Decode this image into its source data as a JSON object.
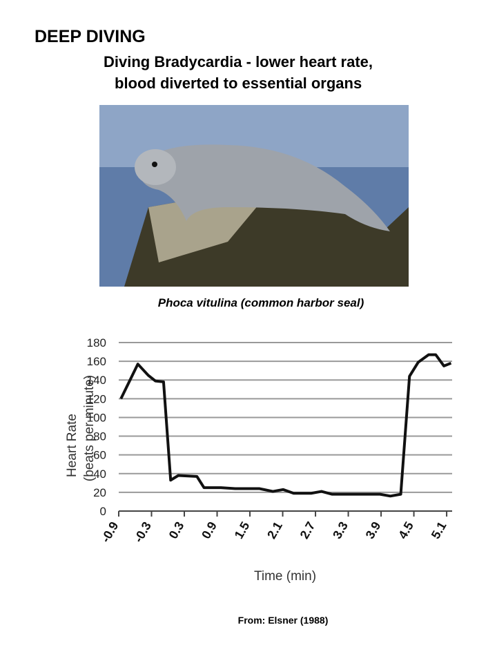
{
  "header": {
    "title": "DEEP DIVING",
    "subtitle": [
      "Diving Bradycardia  - lower heart rate,",
      "blood diverted to essential organs"
    ]
  },
  "photo": {
    "caption": "Phoca vitulina  (common harbor seal)"
  },
  "source": "From: Elsner (1988)",
  "chart_data": {
    "type": "line",
    "xlabel": "Time (min)",
    "ylabel": [
      "Heart Rate",
      "(beats per minute)"
    ],
    "x": [
      -0.86,
      -0.55,
      -0.36,
      -0.23,
      -0.08,
      0.05,
      0.19,
      0.53,
      0.66,
      0.97,
      1.23,
      1.67,
      1.92,
      2.11,
      2.3,
      2.62,
      2.81,
      3.0,
      3.88,
      4.07,
      4.26,
      4.42,
      4.58,
      4.77,
      4.9,
      5.05,
      5.18
    ],
    "series": [
      {
        "color": "#111111",
        "values": [
          120,
          157,
          145,
          139,
          138,
          33,
          38,
          37,
          25,
          25,
          24,
          24,
          21,
          23,
          19,
          19,
          21,
          18,
          18,
          16,
          18,
          144,
          159,
          167,
          167,
          155,
          158
        ]
      }
    ],
    "xlim": [
      -0.9,
      5.2
    ],
    "xticks": [
      -0.9,
      -0.3,
      0.3,
      0.9,
      1.5,
      2.1,
      2.7,
      3.3,
      3.9,
      4.5,
      5.1
    ],
    "ylim": [
      0,
      180
    ],
    "yticks": [
      0,
      20,
      40,
      60,
      80,
      100,
      120,
      140,
      160,
      180
    ],
    "grid": true
  }
}
